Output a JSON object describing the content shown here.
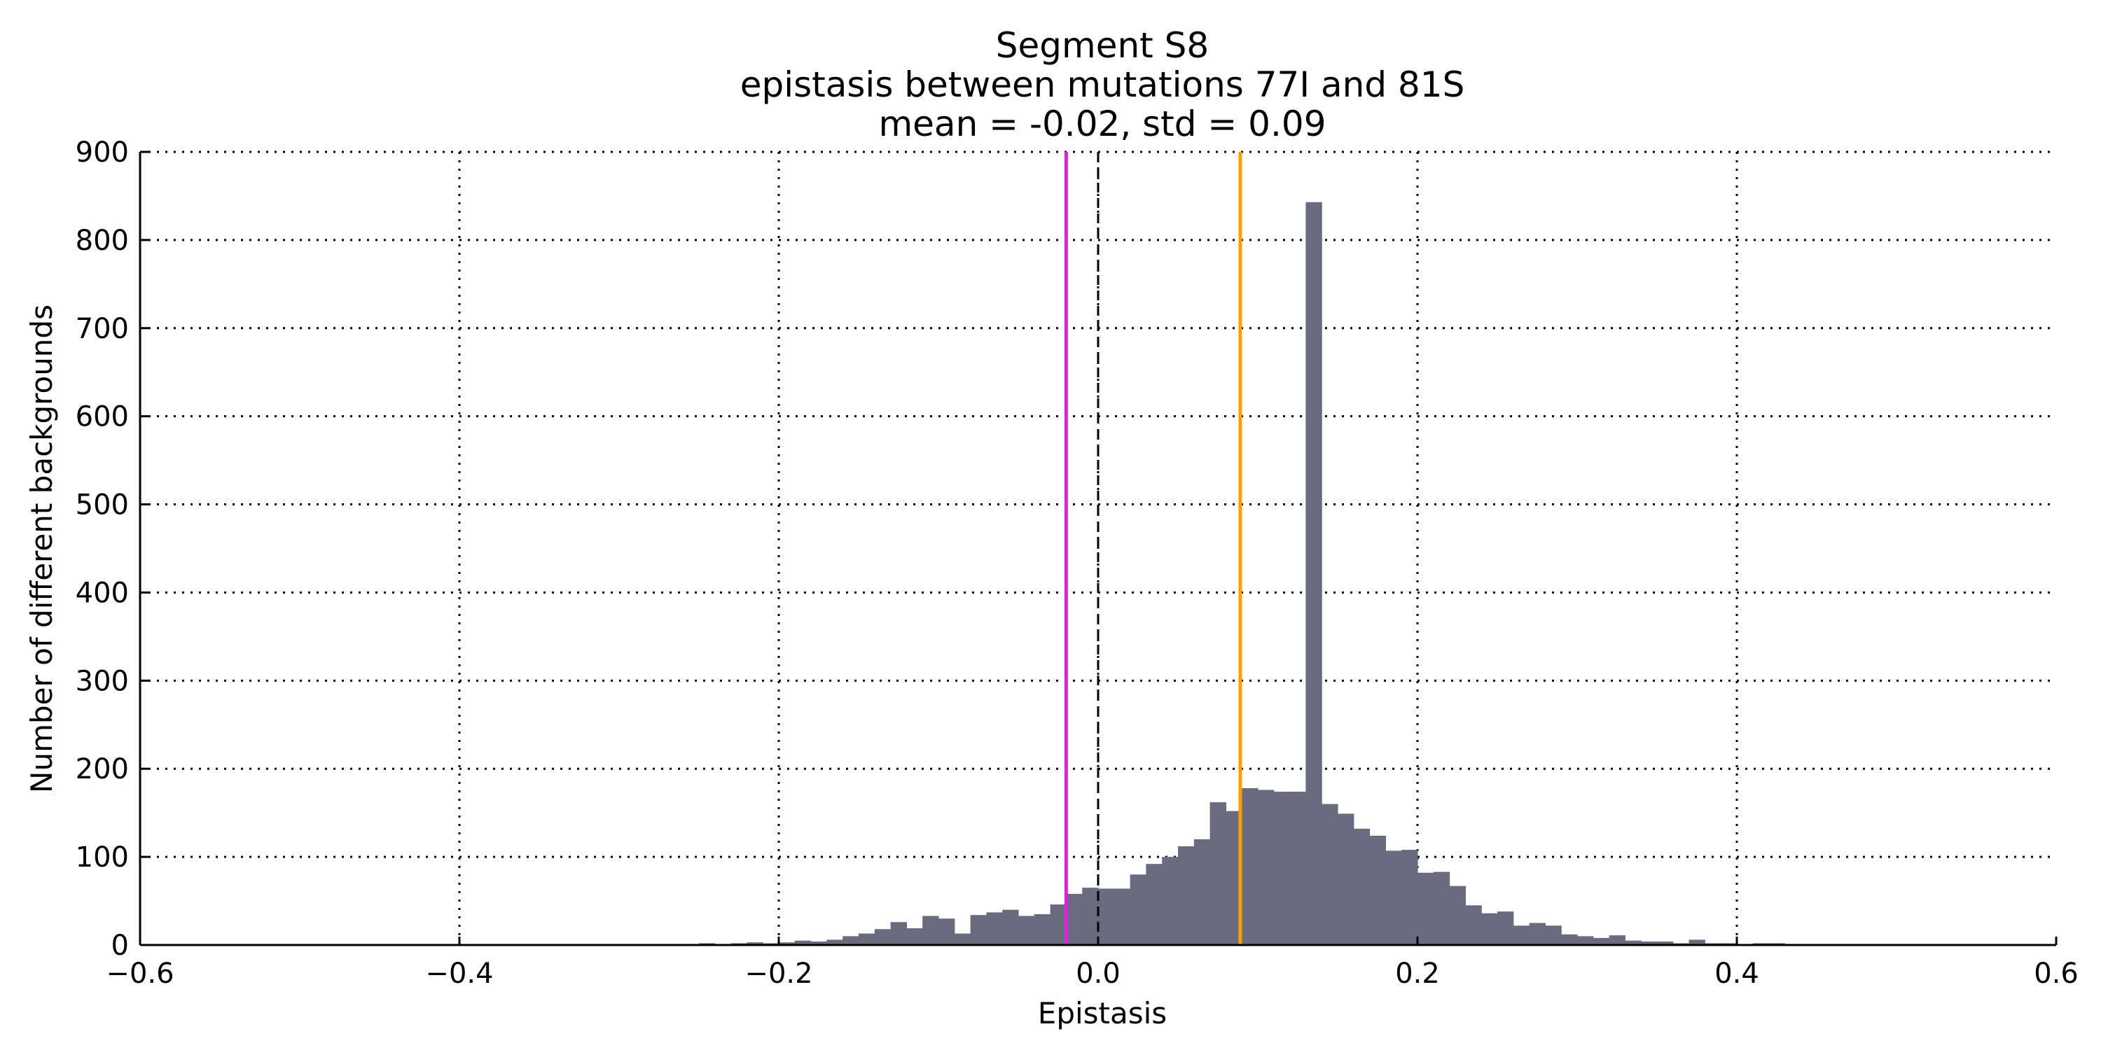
{
  "chart_data": {
    "type": "bar",
    "title_lines": [
      "Segment S8",
      "epistasis between mutations 77I and 81S",
      "mean = -0.02, std = 0.09"
    ],
    "xlabel": "Epistasis",
    "ylabel": "Number of different backgrounds",
    "xlim": [
      -0.6,
      0.6
    ],
    "ylim": [
      0,
      900
    ],
    "x_ticks": [
      -0.6,
      -0.4,
      -0.2,
      0.0,
      0.2,
      0.4,
      0.6
    ],
    "x_tick_labels": [
      "−0.6",
      "−0.4",
      "−0.2",
      "0.0",
      "0.2",
      "0.4",
      "0.6"
    ],
    "y_ticks": [
      0,
      100,
      200,
      300,
      400,
      500,
      600,
      700,
      800,
      900
    ],
    "y_tick_labels": [
      "0",
      "100",
      "200",
      "300",
      "400",
      "500",
      "600",
      "700",
      "800",
      "900"
    ],
    "grid": true,
    "bar_color": "#6b6b80",
    "bins": {
      "start": -0.6,
      "width": 0.01,
      "counts": [
        1,
        1,
        1,
        1,
        1,
        1,
        1,
        1,
        1,
        1,
        1,
        1,
        1,
        1,
        1,
        1,
        1,
        1,
        1,
        1,
        1,
        1,
        1,
        1,
        1,
        1,
        1,
        1,
        1,
        1,
        1,
        1,
        1,
        1,
        1,
        2,
        1,
        2,
        3,
        2,
        3,
        5,
        4,
        6,
        10,
        13,
        18,
        26,
        19,
        33,
        30,
        13,
        34,
        37,
        40,
        33,
        35,
        46,
        58,
        65,
        64,
        64,
        80,
        92,
        100,
        112,
        120,
        162,
        152,
        178,
        176,
        174,
        174,
        843,
        160,
        149,
        132,
        124,
        107,
        108,
        82,
        83,
        67,
        45,
        36,
        38,
        22,
        25,
        22,
        12,
        10,
        8,
        11,
        5,
        4,
        4,
        2,
        6,
        2,
        2,
        1,
        2,
        2,
        1,
        1,
        1,
        1,
        1,
        1,
        1,
        1,
        1,
        1,
        1,
        1,
        1,
        1,
        1,
        1,
        1
      ]
    },
    "reference_lines": [
      {
        "x": 0.0,
        "color": "#000000",
        "style": "dashed"
      },
      {
        "x": -0.02,
        "color": "#e020e0",
        "style": "solid"
      },
      {
        "x": 0.089,
        "color": "#ffa000",
        "style": "solid"
      }
    ]
  }
}
